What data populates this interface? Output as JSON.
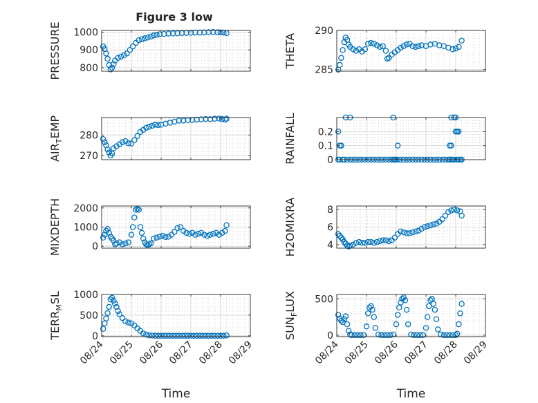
{
  "figure": {
    "title": "Figure 3 low"
  },
  "colors": {
    "series": "#0072BD",
    "axis": "#262626",
    "grid": "#d9d9d9",
    "minor_grid": "#bfbfbf",
    "background": "#ffffff"
  },
  "chart_data": [
    {
      "type": "scatter",
      "ylabel": "PRESSURE",
      "ylim": [
        780,
        1010
      ],
      "yticks": [
        800,
        900,
        1000
      ],
      "xlim": [
        0,
        5
      ],
      "xticks": [
        0,
        1,
        2,
        3,
        4,
        5
      ],
      "xticklabels": [
        "08/24",
        "08/25",
        "08/26",
        "08/27",
        "08/28",
        "08/29"
      ],
      "show_xticklabels": false,
      "grid": true,
      "marker": "open-circle",
      "x": [
        0.05,
        0.1,
        0.15,
        0.2,
        0.25,
        0.3,
        0.35,
        0.4,
        0.45,
        0.55,
        0.65,
        0.75,
        0.85,
        0.95,
        1.05,
        1.15,
        1.25,
        1.35,
        1.45,
        1.55,
        1.65,
        1.75,
        1.85,
        1.95,
        2.1,
        2.25,
        2.4,
        2.55,
        2.7,
        2.85,
        3.0,
        3.15,
        3.3,
        3.45,
        3.6,
        3.75,
        3.9,
        4.0,
        4.1,
        4.2
      ],
      "y": [
        920,
        905,
        880,
        850,
        815,
        790,
        800,
        820,
        840,
        855,
        862,
        870,
        880,
        900,
        920,
        940,
        955,
        960,
        965,
        970,
        975,
        982,
        985,
        988,
        990,
        992,
        993,
        994,
        995,
        996,
        997,
        998,
        998,
        999,
        1000,
        1001,
        1000,
        999,
        998,
        995
      ],
      "title": "Figure 3 low"
    },
    {
      "type": "scatter",
      "ylabel": "THETA",
      "ylim": [
        284.8,
        290
      ],
      "yticks": [
        285,
        290
      ],
      "xlim": [
        0,
        5
      ],
      "xticks": [
        0,
        1,
        2,
        3,
        4,
        5
      ],
      "xticklabels": [
        "08/24",
        "08/25",
        "08/26",
        "08/27",
        "08/28",
        "08/29"
      ],
      "show_xticklabels": false,
      "grid": true,
      "marker": "open-circle",
      "x": [
        0.05,
        0.1,
        0.15,
        0.2,
        0.25,
        0.3,
        0.35,
        0.4,
        0.45,
        0.55,
        0.65,
        0.75,
        0.85,
        0.95,
        1.05,
        1.15,
        1.25,
        1.35,
        1.45,
        1.55,
        1.65,
        1.7,
        1.75,
        1.85,
        1.95,
        2.05,
        2.15,
        2.25,
        2.35,
        2.45,
        2.55,
        2.65,
        2.75,
        2.85,
        3.0,
        3.15,
        3.3,
        3.45,
        3.6,
        3.75,
        3.9,
        4.0,
        4.1,
        4.2
      ],
      "y": [
        285,
        285.6,
        286.5,
        287.5,
        288.5,
        289.1,
        288.8,
        288.2,
        287.9,
        287.6,
        287.4,
        287.6,
        287.3,
        287.6,
        288.3,
        288.4,
        288.3,
        288.1,
        287.9,
        288.0,
        287.4,
        286.4,
        286.5,
        286.9,
        287.2,
        287.5,
        287.8,
        288.0,
        288.2,
        288.3,
        288.0,
        287.9,
        288.0,
        288.1,
        288.0,
        288.2,
        288.3,
        288.1,
        288.0,
        287.8,
        287.6,
        287.7,
        287.9,
        288.7
      ]
    },
    {
      "type": "scatter",
      "ylabel": "AIR_TEMP",
      "ylim": [
        268,
        288.5
      ],
      "yticks": [
        270,
        280
      ],
      "xlim": [
        0,
        5
      ],
      "xticks": [
        0,
        1,
        2,
        3,
        4,
        5
      ],
      "xticklabels": [
        "08/24",
        "08/25",
        "08/26",
        "08/27",
        "08/28",
        "08/29"
      ],
      "show_xticklabels": false,
      "grid": true,
      "marker": "open-circle",
      "x": [
        0.05,
        0.1,
        0.15,
        0.2,
        0.25,
        0.3,
        0.35,
        0.4,
        0.5,
        0.6,
        0.7,
        0.8,
        0.9,
        1.0,
        1.1,
        1.2,
        1.3,
        1.4,
        1.5,
        1.6,
        1.7,
        1.8,
        1.9,
        2.0,
        2.15,
        2.3,
        2.45,
        2.6,
        2.75,
        2.9,
        3.05,
        3.2,
        3.35,
        3.5,
        3.65,
        3.8,
        3.95,
        4.05,
        4.15,
        4.2
      ],
      "y": [
        278,
        276.5,
        275,
        273,
        271.5,
        270,
        271,
        273.5,
        274.5,
        275.5,
        276.5,
        277,
        276,
        275.8,
        277.5,
        279.5,
        281.5,
        282.5,
        283.5,
        284,
        284.5,
        285,
        284.8,
        285,
        285.5,
        286,
        286.5,
        287,
        287,
        287.2,
        287.3,
        287.5,
        287.6,
        287.8,
        287.7,
        287.9,
        288,
        287.8,
        287.5,
        287.9
      ]
    },
    {
      "type": "scatter",
      "ylabel": "RAINFALL",
      "ylim": [
        0,
        0.3
      ],
      "yticks": [
        0,
        0.1,
        0.2
      ],
      "yticklabels": [
        "0",
        "0.1",
        "0.2"
      ],
      "xlim": [
        0,
        5
      ],
      "xticks": [
        0,
        1,
        2,
        3,
        4,
        5
      ],
      "xticklabels": [
        "08/24",
        "08/25",
        "08/26",
        "08/27",
        "08/28",
        "08/29"
      ],
      "show_xticklabels": false,
      "grid": true,
      "marker": "open-circle",
      "x": [
        0.05,
        0.1,
        0.15,
        0.2,
        0.25,
        0.35,
        0.45,
        0.55,
        0.65,
        0.75,
        0.85,
        0.95,
        1.05,
        1.15,
        1.25,
        1.35,
        1.45,
        1.55,
        1.65,
        1.75,
        1.85,
        1.9,
        1.95,
        2.0,
        2.05,
        2.15,
        2.25,
        2.35,
        2.45,
        2.55,
        2.65,
        2.75,
        2.85,
        2.95,
        3.05,
        3.15,
        3.25,
        3.35,
        3.45,
        3.55,
        3.65,
        3.75,
        3.8,
        3.85,
        3.9,
        3.95,
        4.0,
        4.05,
        4.1,
        4.15,
        4.2,
        0.05,
        0.1,
        0.15,
        0.3,
        0.45,
        1.9,
        1.95,
        2.05,
        3.8,
        3.85,
        3.95,
        4.0,
        4.05,
        4.1,
        3.85
      ],
      "y": [
        0.2,
        0.1,
        0.1,
        0,
        0,
        0,
        0,
        0,
        0,
        0,
        0,
        0,
        0,
        0,
        0,
        0,
        0,
        0,
        0,
        0,
        0,
        0.3,
        0,
        0,
        0,
        0,
        0,
        0,
        0,
        0,
        0,
        0,
        0,
        0,
        0,
        0,
        0,
        0,
        0,
        0,
        0,
        0,
        0.1,
        0,
        0,
        0,
        0.2,
        0,
        0,
        0,
        0,
        0,
        0,
        0.1,
        0.3,
        0.3,
        0,
        0,
        0.1,
        0,
        0.3,
        0.3,
        0.3,
        0.2,
        0.2,
        0.1
      ]
    },
    {
      "type": "scatter",
      "ylabel": "MIXDEPTH",
      "ylim": [
        -100,
        2100
      ],
      "yticks": [
        0,
        1000,
        2000
      ],
      "xlim": [
        0,
        5
      ],
      "xticks": [
        0,
        1,
        2,
        3,
        4,
        5
      ],
      "xticklabels": [
        "08/24",
        "08/25",
        "08/26",
        "08/27",
        "08/28",
        "08/29"
      ],
      "show_xticklabels": false,
      "grid": true,
      "marker": "open-circle",
      "x": [
        0.05,
        0.1,
        0.15,
        0.2,
        0.25,
        0.3,
        0.35,
        0.4,
        0.45,
        0.5,
        0.6,
        0.7,
        0.8,
        0.9,
        1.0,
        1.05,
        1.1,
        1.15,
        1.2,
        1.25,
        1.3,
        1.35,
        1.4,
        1.45,
        1.5,
        1.55,
        1.6,
        1.65,
        1.75,
        1.85,
        1.95,
        2.05,
        2.15,
        2.25,
        2.35,
        2.45,
        2.55,
        2.65,
        2.75,
        2.85,
        2.95,
        3.05,
        3.15,
        3.25,
        3.35,
        3.45,
        3.55,
        3.65,
        3.75,
        3.85,
        3.95,
        4.05,
        4.15,
        4.2
      ],
      "y": [
        450,
        600,
        800,
        900,
        700,
        500,
        400,
        300,
        100,
        150,
        200,
        100,
        150,
        200,
        600,
        1000,
        1500,
        1900,
        1950,
        1900,
        1000,
        700,
        400,
        200,
        100,
        50,
        100,
        150,
        400,
        450,
        500,
        550,
        480,
        500,
        600,
        750,
        950,
        1000,
        800,
        700,
        650,
        700,
        600,
        650,
        700,
        600,
        550,
        600,
        650,
        700,
        600,
        700,
        800,
        1100
      ]
    },
    {
      "type": "scatter",
      "ylabel": "H2OMIXRA",
      "ylim": [
        3.6,
        8.4
      ],
      "yticks": [
        4,
        6,
        8
      ],
      "xlim": [
        0,
        5
      ],
      "xticks": [
        0,
        1,
        2,
        3,
        4,
        5
      ],
      "xticklabels": [
        "08/24",
        "08/25",
        "08/26",
        "08/27",
        "08/28",
        "08/29"
      ],
      "show_xticklabels": false,
      "grid": true,
      "marker": "open-circle",
      "x": [
        0.05,
        0.1,
        0.15,
        0.2,
        0.25,
        0.3,
        0.35,
        0.4,
        0.45,
        0.55,
        0.65,
        0.75,
        0.85,
        0.95,
        1.05,
        1.15,
        1.25,
        1.35,
        1.45,
        1.55,
        1.65,
        1.75,
        1.85,
        1.95,
        2.05,
        2.15,
        2.25,
        2.35,
        2.45,
        2.55,
        2.65,
        2.75,
        2.85,
        2.95,
        3.05,
        3.15,
        3.25,
        3.35,
        3.45,
        3.55,
        3.65,
        3.75,
        3.85,
        3.95,
        4.05,
        4.15,
        4.2
      ],
      "y": [
        5.2,
        5.0,
        4.8,
        4.6,
        4.3,
        4.1,
        3.9,
        3.8,
        3.9,
        4.0,
        4.2,
        4.3,
        4.2,
        4.2,
        4.3,
        4.3,
        4.2,
        4.3,
        4.4,
        4.5,
        4.5,
        4.4,
        4.5,
        4.8,
        5.2,
        5.5,
        5.4,
        5.3,
        5.3,
        5.4,
        5.5,
        5.6,
        5.8,
        6.0,
        6.1,
        6.2,
        6.3,
        6.4,
        6.6,
        6.9,
        7.3,
        7.7,
        7.9,
        8.0,
        7.9,
        7.8,
        7.3
      ]
    },
    {
      "type": "scatter",
      "ylabel": "TERR_MSL",
      "ylim": [
        -20,
        1000
      ],
      "yticks": [
        0,
        500,
        1000
      ],
      "xlim": [
        0,
        5
      ],
      "xticks": [
        0,
        1,
        2,
        3,
        4,
        5
      ],
      "xticklabels": [
        "08/24",
        "08/25",
        "08/26",
        "08/27",
        "08/28",
        "08/29"
      ],
      "show_xticklabels": true,
      "xlabel": "Time",
      "grid": true,
      "marker": "open-circle",
      "x": [
        0.05,
        0.1,
        0.15,
        0.2,
        0.25,
        0.3,
        0.35,
        0.4,
        0.45,
        0.5,
        0.55,
        0.6,
        0.7,
        0.8,
        0.9,
        1.0,
        1.1,
        1.2,
        1.3,
        1.4,
        1.5,
        1.6,
        1.7,
        1.8,
        1.9,
        2.0,
        2.1,
        2.2,
        2.3,
        2.4,
        2.5,
        2.6,
        2.7,
        2.8,
        2.9,
        3.0,
        3.1,
        3.2,
        3.3,
        3.4,
        3.5,
        3.6,
        3.7,
        3.8,
        3.9,
        4.0,
        4.1,
        4.2
      ],
      "y": [
        170,
        300,
        420,
        550,
        700,
        880,
        920,
        850,
        780,
        700,
        600,
        520,
        430,
        350,
        320,
        300,
        250,
        180,
        120,
        60,
        30,
        10,
        5,
        0,
        0,
        0,
        0,
        0,
        0,
        0,
        0,
        0,
        0,
        0,
        0,
        0,
        0,
        0,
        0,
        0,
        0,
        0,
        0,
        0,
        0,
        0,
        0,
        10
      ]
    },
    {
      "type": "scatter",
      "ylabel": "SUN_FLUX",
      "ylim": [
        -20,
        560
      ],
      "yticks": [
        0,
        500
      ],
      "xlim": [
        0,
        5
      ],
      "xticks": [
        0,
        1,
        2,
        3,
        4,
        5
      ],
      "xticklabels": [
        "08/24",
        "08/25",
        "08/26",
        "08/27",
        "08/28",
        "08/29"
      ],
      "show_xticklabels": true,
      "xlabel": "Time",
      "grid": true,
      "marker": "open-circle",
      "x": [
        0.05,
        0.1,
        0.15,
        0.2,
        0.25,
        0.3,
        0.35,
        0.4,
        0.45,
        0.5,
        0.6,
        0.7,
        0.8,
        0.9,
        1.0,
        1.05,
        1.1,
        1.15,
        1.2,
        1.25,
        1.3,
        1.4,
        1.5,
        1.6,
        1.7,
        1.8,
        1.9,
        2.0,
        2.05,
        2.1,
        2.15,
        2.2,
        2.25,
        2.3,
        2.35,
        2.4,
        2.5,
        2.6,
        2.7,
        2.8,
        2.9,
        3.0,
        3.05,
        3.1,
        3.15,
        3.2,
        3.25,
        3.3,
        3.35,
        3.4,
        3.5,
        3.6,
        3.7,
        3.8,
        3.9,
        4.0,
        4.05,
        4.1,
        4.15,
        4.2
      ],
      "y": [
        280,
        230,
        200,
        180,
        220,
        260,
        150,
        60,
        10,
        0,
        0,
        0,
        0,
        0,
        120,
        300,
        380,
        400,
        350,
        250,
        100,
        10,
        0,
        0,
        0,
        0,
        10,
        150,
        280,
        380,
        450,
        500,
        520,
        480,
        350,
        150,
        10,
        0,
        0,
        0,
        0,
        100,
        250,
        400,
        480,
        500,
        430,
        350,
        220,
        80,
        10,
        0,
        0,
        0,
        0,
        0,
        20,
        150,
        300,
        430
      ]
    }
  ]
}
